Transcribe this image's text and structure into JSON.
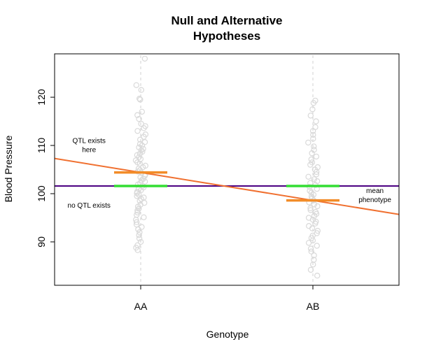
{
  "chart_data": {
    "type": "scatter",
    "title_lines": [
      "Null and Alternative",
      "Hypotheses"
    ],
    "xlabel": "Genotype",
    "ylabel": "Blood Pressure",
    "categories": [
      "AA",
      "AB"
    ],
    "xlim": [
      0.5,
      2.5
    ],
    "ylim": [
      81,
      129
    ],
    "yticks": [
      90,
      100,
      110,
      120
    ],
    "grid": false,
    "legend": "none",
    "series": [
      {
        "category": "AA",
        "values": [
          128,
          122.5,
          121.5,
          119.7,
          119.5,
          117,
          116.3,
          115.5,
          114.5,
          114,
          113.6,
          113,
          112.3,
          111.8,
          111.2,
          110.7,
          110.3,
          110,
          109.6,
          109.3,
          109,
          108.7,
          108.3,
          108,
          107.6,
          107.2,
          106.9,
          106.5,
          106.2,
          105.8,
          105.5,
          105.2,
          104.9,
          104.6,
          104.3,
          104,
          103.7,
          103.4,
          103.1,
          102.8,
          102.5,
          102.2,
          101.9,
          101.6,
          101.3,
          101,
          100.7,
          100.4,
          100.1,
          99.8,
          99.5,
          99.2,
          98.9,
          98.5,
          98.1,
          97.7,
          97.3,
          96.9,
          96.5,
          96.1,
          95.6,
          95.1,
          94.6,
          94.1,
          93.6,
          93.1,
          92.6,
          92,
          91.4,
          90.7,
          90,
          89.3,
          88.8,
          88.3
        ]
      },
      {
        "category": "AB",
        "values": [
          119.3,
          118.8,
          117.5,
          116.2,
          115,
          113.8,
          113,
          112.2,
          111.4,
          110.6,
          109.8,
          109.1,
          108.4,
          107.7,
          107.1,
          106.5,
          106,
          105.5,
          105,
          104.5,
          104,
          103.5,
          103,
          102.6,
          102.2,
          101.8,
          101.4,
          101,
          100.6,
          100.2,
          99.8,
          99.4,
          99,
          98.6,
          98.2,
          97.8,
          97.4,
          97,
          96.6,
          96.2,
          95.8,
          95.4,
          95,
          94.6,
          94.2,
          93.8,
          93.3,
          92.8,
          92.3,
          91.8,
          91.3,
          90.8,
          90.3,
          89.8,
          89.2,
          88.6,
          88,
          87.2,
          86.3,
          85.3,
          84.2,
          83
        ]
      }
    ],
    "group_means": [
      {
        "category": "AA",
        "value": 104.4,
        "color": "#f28c28"
      },
      {
        "category": "AB",
        "value": 98.6,
        "color": "#f28c28"
      }
    ],
    "overall_mean": {
      "value": 101.6,
      "color": "#33dd33"
    },
    "null_line": {
      "value": 101.6,
      "color": "#4b0082"
    },
    "alt_line": {
      "at_x1": 104.4,
      "at_x2": 98.6,
      "color": "#f07030"
    },
    "annotations": [
      {
        "lines": [
          "QTL exists",
          "here"
        ],
        "x": 0.7,
        "y": 110
      },
      {
        "lines": [
          "no QTL exists"
        ],
        "x": 0.7,
        "y": 97.5
      },
      {
        "lines": [
          "mean",
          "phenotype"
        ],
        "x": 2.36,
        "y": 99.6
      }
    ],
    "point_color": "#d9d9d9"
  }
}
